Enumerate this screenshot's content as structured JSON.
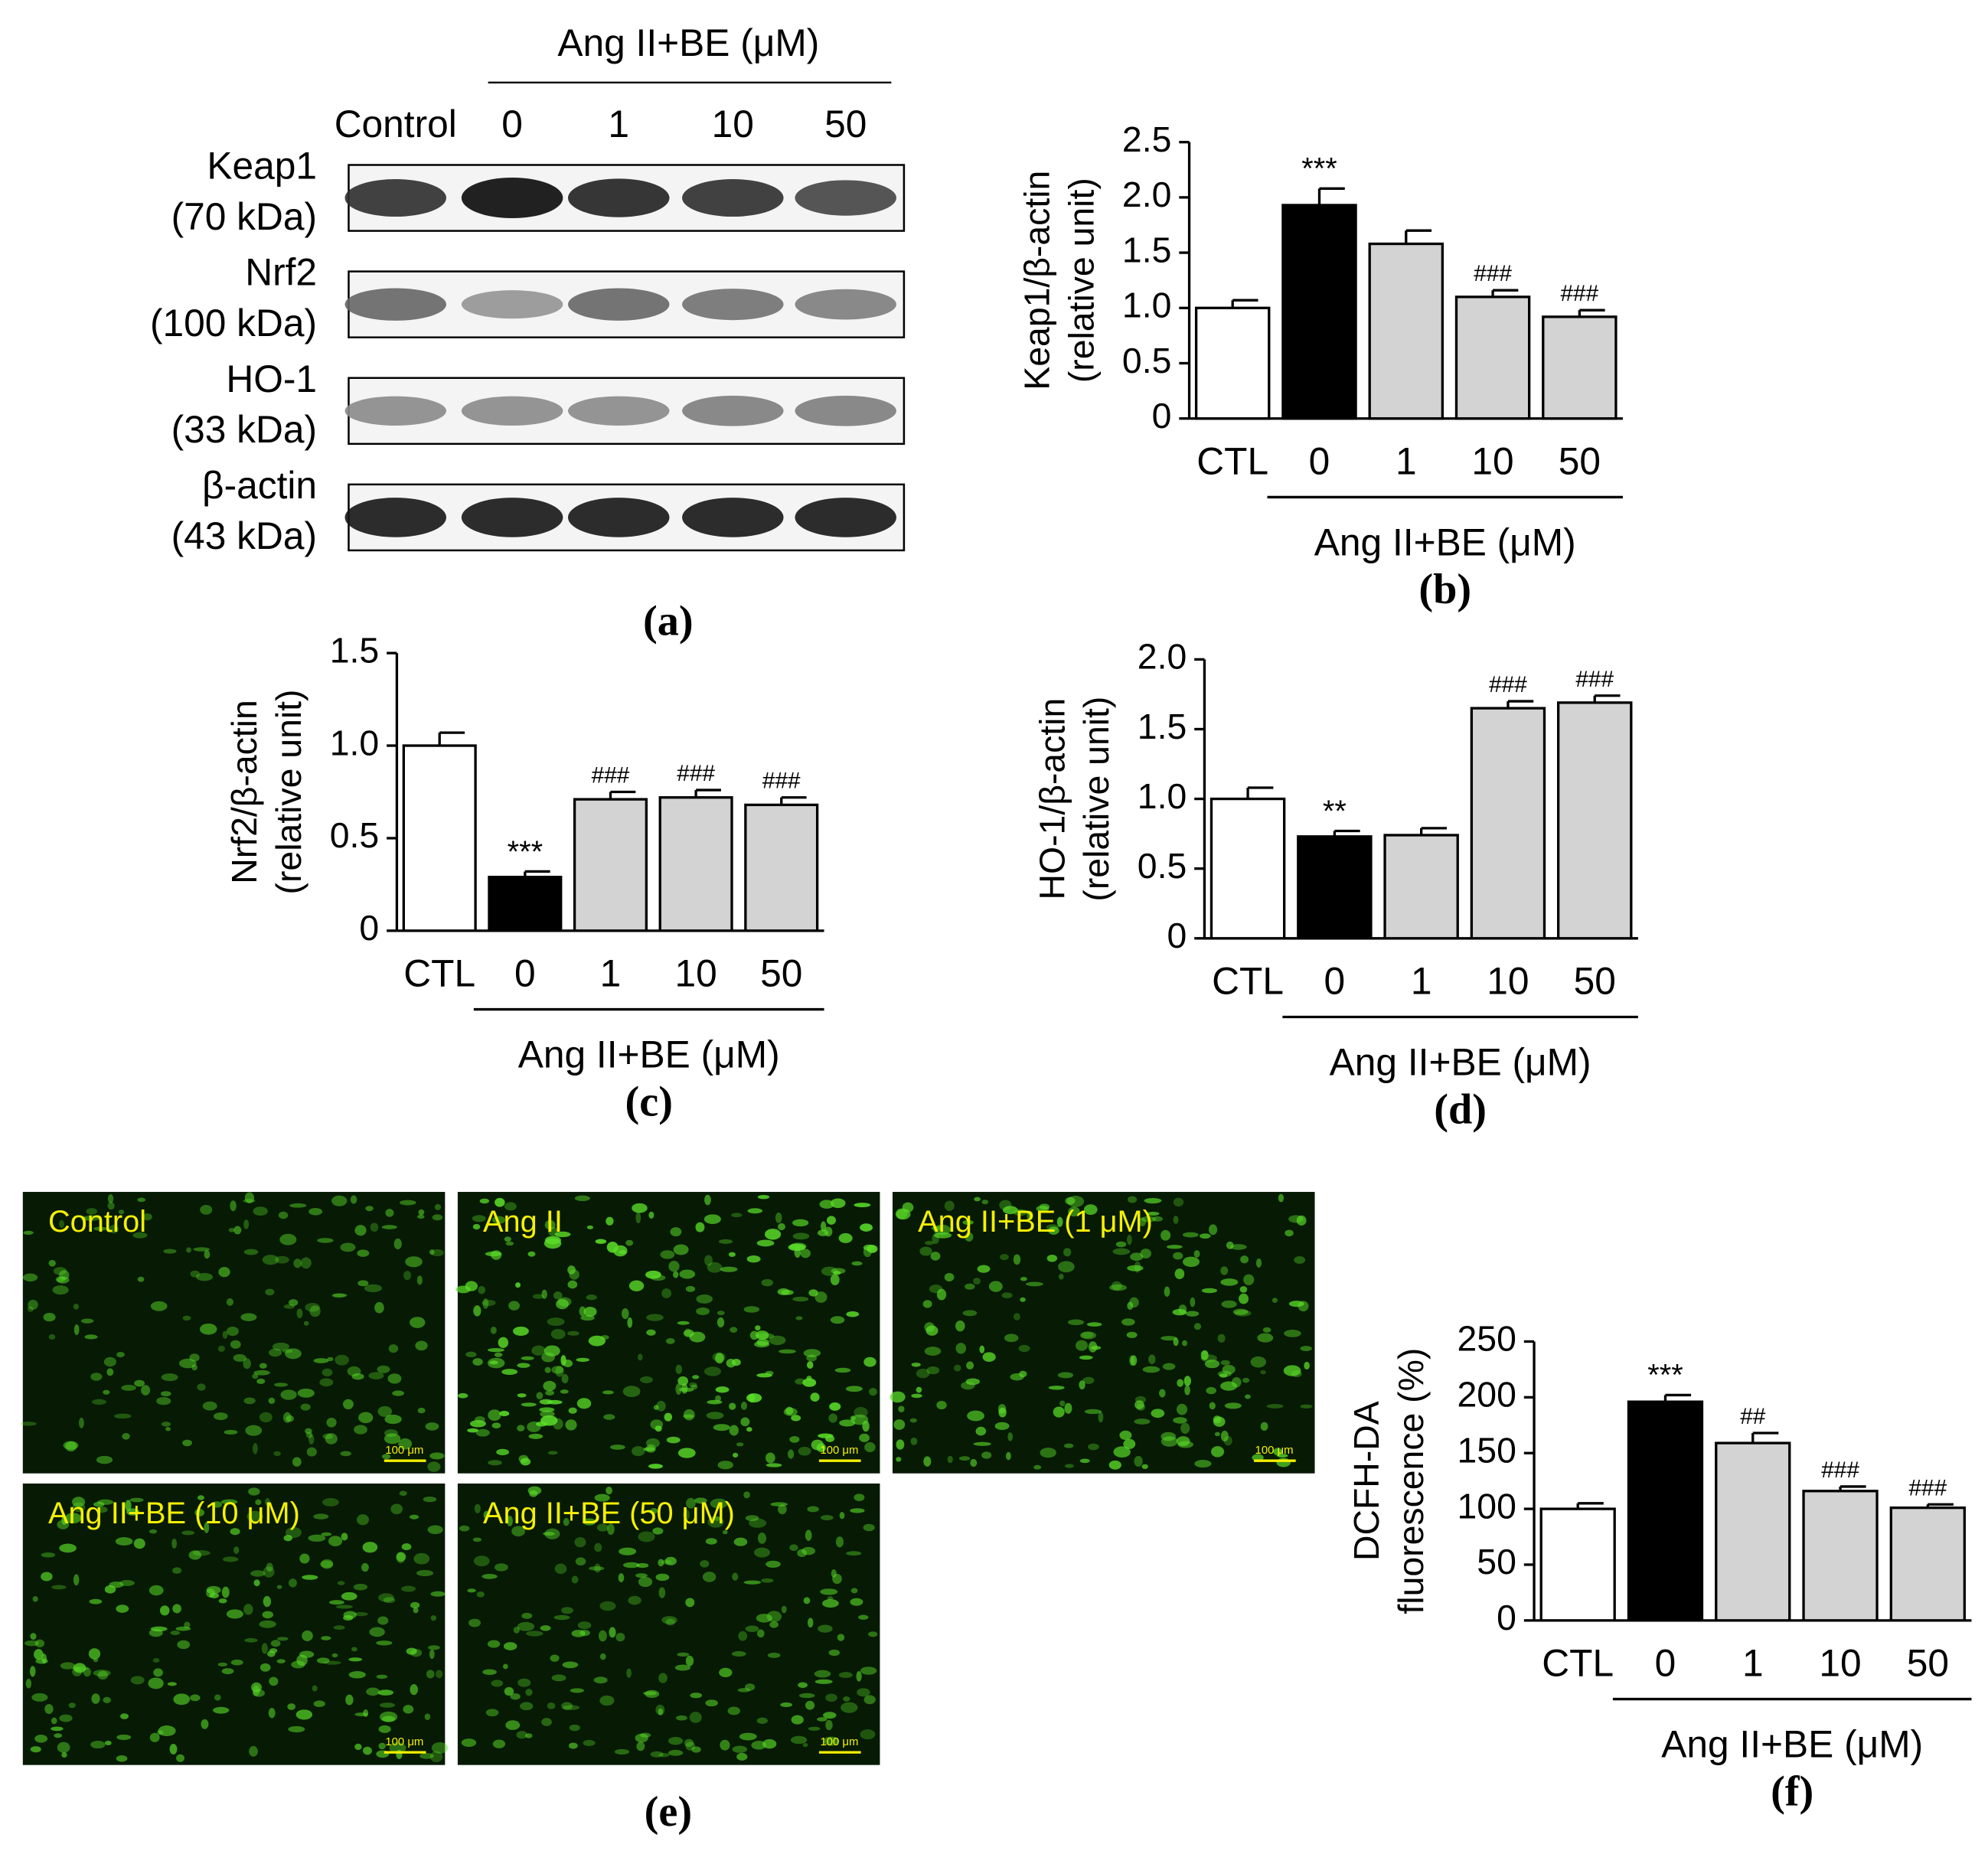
{
  "blot": {
    "panel_label": "(a)",
    "group_label": "Ang II+BE (μM)",
    "lanes": [
      "Control",
      "0",
      "1",
      "10",
      "50"
    ],
    "rows": [
      {
        "name": "Keap1",
        "size": "(70 kDa)"
      },
      {
        "name": "Nrf2",
        "size": "(100 kDa)"
      },
      {
        "name": "HO-1",
        "size": "(33 kDa)"
      },
      {
        "name": "β-actin",
        "size": "(43 kDa)"
      }
    ]
  },
  "micrographs": {
    "panel_label": "(e)",
    "scale_bar": "100 μm",
    "labels": [
      "Control",
      "Ang II",
      "Ang II+BE (1 μM)",
      "Ang II+BE (10 μM)",
      "Ang II+BE (50 μM)"
    ]
  },
  "chart_data": [
    {
      "type": "bar",
      "panel_label": "(b)",
      "ylabel": [
        "Keap1/β-actin",
        "(relative unit)"
      ],
      "group_label": "Ang II+BE (μM)",
      "categories": [
        "CTL",
        "0",
        "1",
        "10",
        "50"
      ],
      "values": [
        1.0,
        1.93,
        1.58,
        1.1,
        0.92
      ],
      "errors": [
        0.07,
        0.15,
        0.12,
        0.06,
        0.06
      ],
      "annotations": [
        null,
        "***",
        null,
        "###",
        "###"
      ],
      "colors": [
        "#ffffff",
        "#000000",
        "#d3d3d3",
        "#d3d3d3",
        "#d3d3d3"
      ],
      "ylim": [
        0,
        2.5
      ],
      "yticks": [
        0,
        0.5,
        {
          "value": 1,
          "label": "1.0"
        },
        1.5,
        {
          "value": 2,
          "label": "2.0"
        },
        2.5
      ]
    },
    {
      "type": "bar",
      "panel_label": "(c)",
      "ylabel": [
        "Nrf2/β-actin",
        "(relative unit)"
      ],
      "group_label": "Ang II+BE (μM)",
      "categories": [
        "CTL",
        "0",
        "1",
        "10",
        "50"
      ],
      "values": [
        1.0,
        0.29,
        0.71,
        0.72,
        0.68
      ],
      "errors": [
        0.07,
        0.03,
        0.04,
        0.04,
        0.04
      ],
      "annotations": [
        null,
        "***",
        "###",
        "###",
        "###"
      ],
      "colors": [
        "#ffffff",
        "#000000",
        "#d3d3d3",
        "#d3d3d3",
        "#d3d3d3"
      ],
      "ylim": [
        0,
        1.5
      ],
      "yticks": [
        0,
        0.5,
        {
          "value": 1,
          "label": "1.0"
        },
        1.5
      ]
    },
    {
      "type": "bar",
      "panel_label": "(d)",
      "ylabel": [
        "HO-1/β-actin",
        "(relative unit)"
      ],
      "group_label": "Ang II+BE (μM)",
      "categories": [
        "CTL",
        "0",
        "1",
        "10",
        "50"
      ],
      "values": [
        1.0,
        0.73,
        0.74,
        1.65,
        1.69
      ],
      "errors": [
        0.08,
        0.04,
        0.05,
        0.05,
        0.05
      ],
      "annotations": [
        null,
        "**",
        null,
        "###",
        "###"
      ],
      "colors": [
        "#ffffff",
        "#000000",
        "#d3d3d3",
        "#d3d3d3",
        "#d3d3d3"
      ],
      "ylim": [
        0,
        2
      ],
      "yticks": [
        0,
        0.5,
        {
          "value": 1,
          "label": "1.0"
        },
        1.5,
        {
          "value": 2,
          "label": "2.0"
        }
      ]
    },
    {
      "type": "bar",
      "panel_label": "(f)",
      "ylabel": [
        "DCFH-DA",
        "fluorescence (%)"
      ],
      "group_label": "Ang II+BE (μM)",
      "categories": [
        "CTL",
        "0",
        "1",
        "10",
        "50"
      ],
      "values": [
        100,
        196,
        159,
        116,
        101
      ],
      "errors": [
        5,
        6,
        9,
        4,
        3
      ],
      "annotations": [
        null,
        "***",
        "##",
        "###",
        "###"
      ],
      "colors": [
        "#ffffff",
        "#000000",
        "#d3d3d3",
        "#d3d3d3",
        "#d3d3d3"
      ],
      "ylim": [
        0,
        250
      ],
      "yticks": [
        0,
        50,
        100,
        150,
        200,
        250
      ]
    }
  ]
}
